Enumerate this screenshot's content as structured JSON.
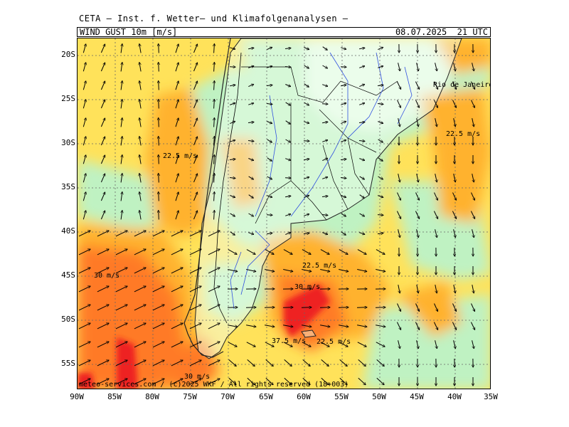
{
  "header": {
    "title": "CETA – Inst. f. Wetter– und Klimafolgenanalysen –",
    "variable": "WIND_GUST_10m [m/s]",
    "valid_time": "08.07.2025  21 UTC"
  },
  "axes": {
    "lat_labels": [
      "20S",
      "25S",
      "30S",
      "35S",
      "40S",
      "45S",
      "50S",
      "55S"
    ],
    "lon_labels": [
      "90W",
      "85W",
      "80W",
      "75W",
      "70W",
      "65W",
      "60W",
      "55W",
      "50W",
      "45W",
      "40W",
      "35W"
    ]
  },
  "map_labels": {
    "city": "Rio de Janeiro",
    "contour_22_5_a": "22.5 m/s",
    "contour_22_5_b": "22.5 m/s",
    "contour_22_5_c": "22.5 m/s",
    "contour_22_5_d": "22.5 m/s",
    "contour_30_a": "30 m/s",
    "contour_30_b": "30 m/s",
    "contour_30_c": "30 m/s",
    "contour_37_5": "37.5 m/s"
  },
  "footer": "meteo-services.com / (c)2025 WKF / All rights reserved (18+003)",
  "colors": {
    "gust_below_15": "#e6fbe6",
    "gust_15": "#bff2c2",
    "gust_20": "#ffe25a",
    "gust_25": "#ffb22e",
    "gust_30": "#ff7a26",
    "gust_37_5": "#ee2020",
    "land_low": "#f1fff1",
    "coast": "#222222",
    "rivers": "#3050e0",
    "borders": "#000000"
  }
}
